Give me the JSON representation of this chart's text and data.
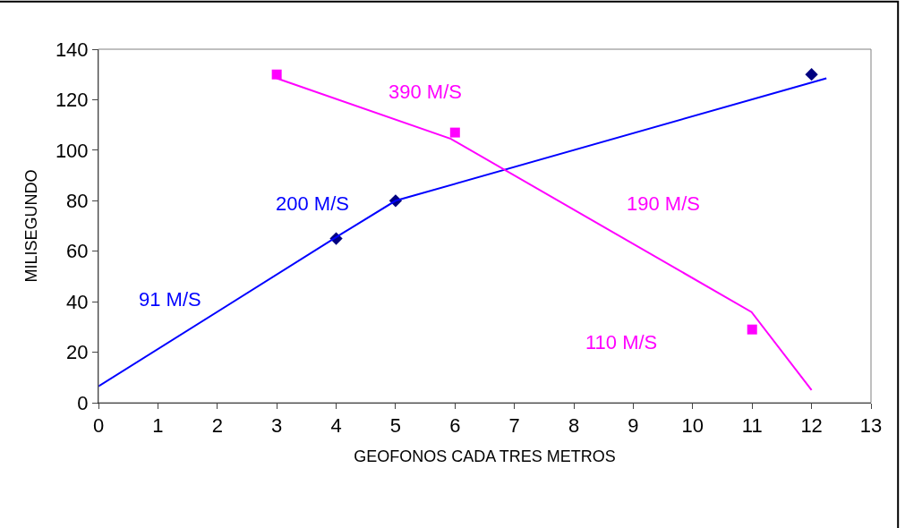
{
  "chart_data": {
    "type": "scatter",
    "xlabel": "GEOFONOS CADA TRES METROS",
    "ylabel": "MILISEGUNDO",
    "xlim": [
      0,
      13
    ],
    "xticks": [
      0,
      1,
      2,
      3,
      4,
      5,
      6,
      7,
      8,
      9,
      10,
      11,
      12,
      13
    ],
    "ylim": [
      0,
      140
    ],
    "yticks": [
      0,
      20,
      40,
      60,
      80,
      100,
      120,
      140
    ],
    "series": [
      {
        "marker": "diamond",
        "color": "#000080",
        "x": [
          4,
          5,
          12
        ],
        "values": [
          65,
          80,
          130
        ]
      },
      {
        "marker": "square",
        "color": "#ff00ff",
        "x": [
          3,
          6,
          11
        ],
        "values": [
          130,
          107,
          29
        ]
      },
      {
        "type": "line",
        "marker": "none",
        "color": "#0000ff",
        "x": [
          0,
          4.1,
          5,
          12.25
        ],
        "values": [
          6.5,
          67,
          80,
          128.5
        ]
      },
      {
        "type": "line",
        "marker": "none",
        "color": "#ff00ff",
        "x": [
          3,
          5.93,
          10.99,
          12
        ],
        "values": [
          128.5,
          104.5,
          35.9,
          5
        ]
      }
    ],
    "annotations": [
      "91 M/S",
      "200 M/S",
      "390 M/S",
      "190 M/S",
      "110 M/S"
    ]
  }
}
